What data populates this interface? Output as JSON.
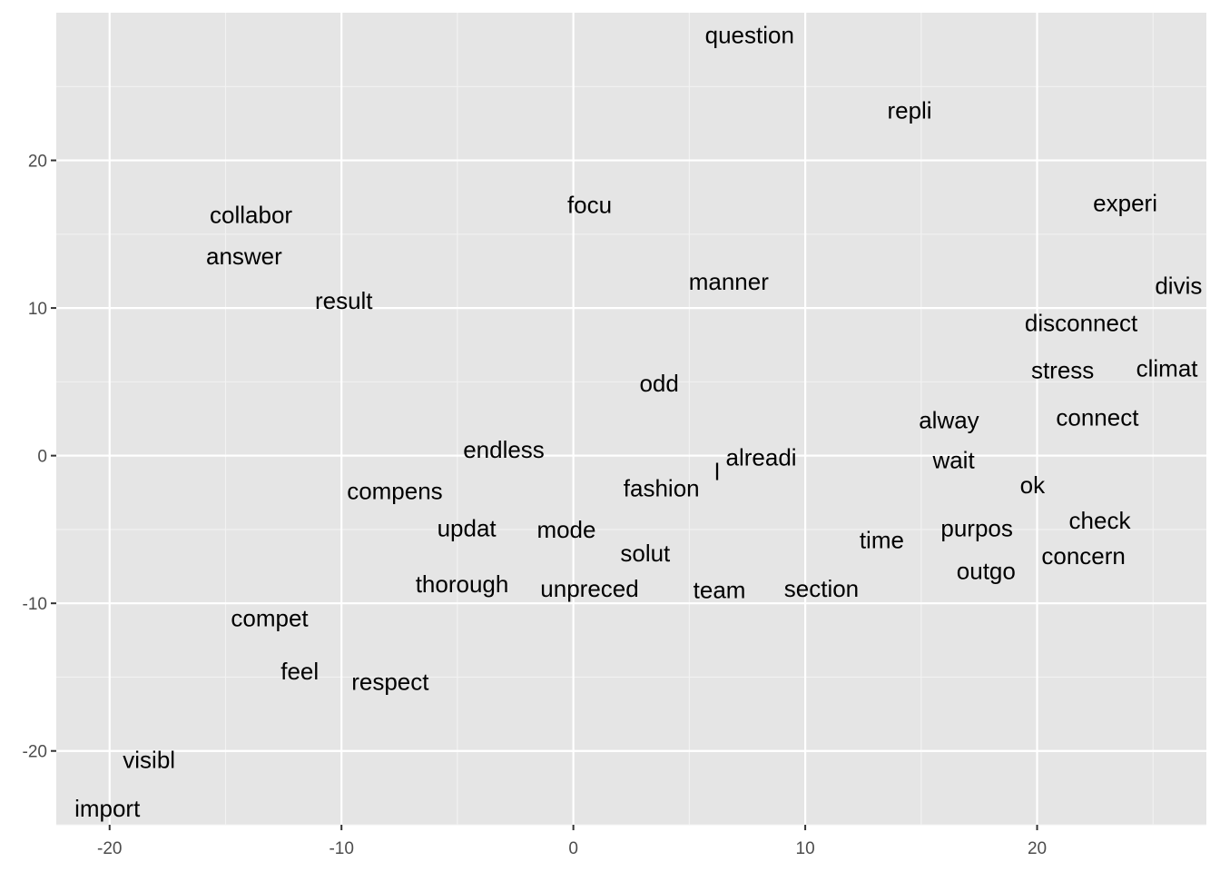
{
  "chart_data": {
    "type": "scatter",
    "title": "",
    "xlabel": "",
    "ylabel": "",
    "xlim": [
      -22.3,
      27.3
    ],
    "ylim": [
      -25,
      30
    ],
    "x_ticks": [
      -20,
      -10,
      0,
      10,
      20
    ],
    "y_ticks": [
      -20,
      -10,
      0,
      10,
      20
    ],
    "x_tick_labels": [
      "-20",
      "-10",
      "0",
      "10",
      "20"
    ],
    "y_tick_labels": [
      "-20",
      "-10",
      "0",
      "10",
      "20"
    ],
    "grid": true,
    "panel_color": "#e5e5e5",
    "grid_color": "#ffffff",
    "points": [
      {
        "label": "question",
        "x": 7.6,
        "y": 28.5
      },
      {
        "label": "repli",
        "x": 14.5,
        "y": 23.4
      },
      {
        "label": "experi",
        "x": 23.8,
        "y": 17.1
      },
      {
        "label": "focu",
        "x": 0.7,
        "y": 17.0
      },
      {
        "label": "collabor",
        "x": -13.9,
        "y": 16.3
      },
      {
        "label": "answer",
        "x": -14.2,
        "y": 13.5
      },
      {
        "label": "manner",
        "x": 6.7,
        "y": 11.8
      },
      {
        "label": "divis",
        "x": 26.1,
        "y": 11.5
      },
      {
        "label": "result",
        "x": -9.9,
        "y": 10.5
      },
      {
        "label": "disconnect",
        "x": 21.9,
        "y": 9.0
      },
      {
        "label": "stress",
        "x": 21.1,
        "y": 5.8
      },
      {
        "label": "climat",
        "x": 25.6,
        "y": 5.9
      },
      {
        "label": "odd",
        "x": 3.7,
        "y": 4.9
      },
      {
        "label": "connect",
        "x": 22.6,
        "y": 2.6
      },
      {
        "label": "alway",
        "x": 16.2,
        "y": 2.4
      },
      {
        "label": "endless",
        "x": -3.0,
        "y": 0.4
      },
      {
        "label": "alreadi",
        "x": 8.1,
        "y": -0.1
      },
      {
        "label": "wait",
        "x": 16.4,
        "y": -0.3
      },
      {
        "label": "l",
        "x": 6.2,
        "y": -1.1
      },
      {
        "label": "ok",
        "x": 19.8,
        "y": -2.0
      },
      {
        "label": "compens",
        "x": -7.7,
        "y": -2.4
      },
      {
        "label": "fashion",
        "x": 3.8,
        "y": -2.2
      },
      {
        "label": "check",
        "x": 22.7,
        "y": -4.4
      },
      {
        "label": "updat",
        "x": -4.6,
        "y": -4.9
      },
      {
        "label": "mode",
        "x": -0.3,
        "y": -5.0
      },
      {
        "label": "purpos",
        "x": 17.4,
        "y": -4.9
      },
      {
        "label": "time",
        "x": 13.3,
        "y": -5.7
      },
      {
        "label": "solut",
        "x": 3.1,
        "y": -6.6
      },
      {
        "label": "concern",
        "x": 22.0,
        "y": -6.8
      },
      {
        "label": "outgo",
        "x": 17.8,
        "y": -7.8
      },
      {
        "label": "thorough",
        "x": -4.8,
        "y": -8.7
      },
      {
        "label": "unpreced",
        "x": 0.7,
        "y": -9.0
      },
      {
        "label": "team",
        "x": 6.3,
        "y": -9.1
      },
      {
        "label": "section",
        "x": 10.7,
        "y": -9.0
      },
      {
        "label": "compet",
        "x": -13.1,
        "y": -11.0
      },
      {
        "label": "feel",
        "x": -11.8,
        "y": -14.6
      },
      {
        "label": "respect",
        "x": -7.9,
        "y": -15.3
      },
      {
        "label": "visibl",
        "x": -18.3,
        "y": -20.6
      },
      {
        "label": "import",
        "x": -20.1,
        "y": -23.9
      }
    ]
  }
}
